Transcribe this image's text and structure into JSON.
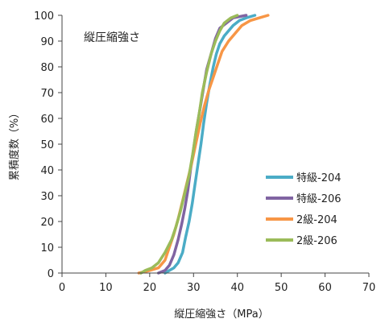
{
  "chart_data": {
    "type": "line",
    "annotation": "縦圧縮強さ",
    "xlabel": "縦圧縮強さ（MPa）",
    "ylabel": "累積度数（%）",
    "xlim": [
      0,
      70
    ],
    "ylim": [
      0,
      100
    ],
    "x_ticks": [
      0,
      10,
      20,
      30,
      40,
      50,
      60,
      70
    ],
    "y_ticks": [
      0,
      10,
      20,
      30,
      40,
      50,
      60,
      70,
      80,
      90,
      100
    ],
    "grid": false,
    "legend_position": "right-middle",
    "series": [
      {
        "name": "特級-204",
        "color": "#4BACC6",
        "points": [
          [
            23.5,
            0
          ],
          [
            24.5,
            1
          ],
          [
            25.5,
            2
          ],
          [
            26.5,
            4
          ],
          [
            27.5,
            8
          ],
          [
            28.2,
            14
          ],
          [
            29,
            20
          ],
          [
            29.7,
            27
          ],
          [
            30.3,
            34
          ],
          [
            31,
            42
          ],
          [
            31.7,
            50
          ],
          [
            32.3,
            58
          ],
          [
            33,
            66
          ],
          [
            33.7,
            73
          ],
          [
            34.5,
            80
          ],
          [
            35.2,
            85
          ],
          [
            36,
            89
          ],
          [
            37,
            92
          ],
          [
            38,
            94
          ],
          [
            39,
            96
          ],
          [
            40.5,
            98
          ],
          [
            42,
            99
          ],
          [
            44,
            100
          ]
        ]
      },
      {
        "name": "特級-206",
        "color": "#8064A2",
        "points": [
          [
            22,
            0
          ],
          [
            23.5,
            1
          ],
          [
            24.5,
            3
          ],
          [
            25.5,
            7
          ],
          [
            26.5,
            13
          ],
          [
            27.3,
            19
          ],
          [
            28,
            25
          ],
          [
            28.7,
            32
          ],
          [
            29.3,
            40
          ],
          [
            30,
            48
          ],
          [
            30.7,
            56
          ],
          [
            31.5,
            64
          ],
          [
            32.3,
            72
          ],
          [
            33,
            79
          ],
          [
            34,
            85
          ],
          [
            35,
            91
          ],
          [
            36,
            95
          ],
          [
            37.5,
            97
          ],
          [
            39,
            99
          ],
          [
            42,
            100
          ]
        ]
      },
      {
        "name": "2級-204",
        "color": "#F79646",
        "points": [
          [
            17.5,
            0
          ],
          [
            20,
            1
          ],
          [
            22,
            2
          ],
          [
            23.5,
            5
          ],
          [
            24.5,
            10
          ],
          [
            25.5,
            15
          ],
          [
            26.5,
            21
          ],
          [
            27.5,
            28
          ],
          [
            28.5,
            35
          ],
          [
            29.5,
            42
          ],
          [
            30.5,
            50
          ],
          [
            31.5,
            58
          ],
          [
            32.5,
            65
          ],
          [
            33.5,
            71
          ],
          [
            34.5,
            76
          ],
          [
            35.5,
            81
          ],
          [
            36.5,
            86
          ],
          [
            38,
            90
          ],
          [
            39.5,
            93
          ],
          [
            41,
            96
          ],
          [
            43,
            98
          ],
          [
            45,
            99
          ],
          [
            47,
            100
          ]
        ]
      },
      {
        "name": "2級-206",
        "color": "#9BBB59",
        "points": [
          [
            18,
            0
          ],
          [
            19,
            1
          ],
          [
            20.5,
            2
          ],
          [
            22,
            4
          ],
          [
            23.5,
            8
          ],
          [
            25,
            13
          ],
          [
            26,
            18
          ],
          [
            27,
            24
          ],
          [
            28,
            31
          ],
          [
            29,
            38
          ],
          [
            29.8,
            46
          ],
          [
            30.5,
            54
          ],
          [
            31.3,
            62
          ],
          [
            32,
            70
          ],
          [
            33,
            78
          ],
          [
            34,
            85
          ],
          [
            35,
            90
          ],
          [
            36,
            94
          ],
          [
            37,
            97
          ],
          [
            38.5,
            99
          ],
          [
            40,
            100
          ]
        ]
      }
    ]
  }
}
